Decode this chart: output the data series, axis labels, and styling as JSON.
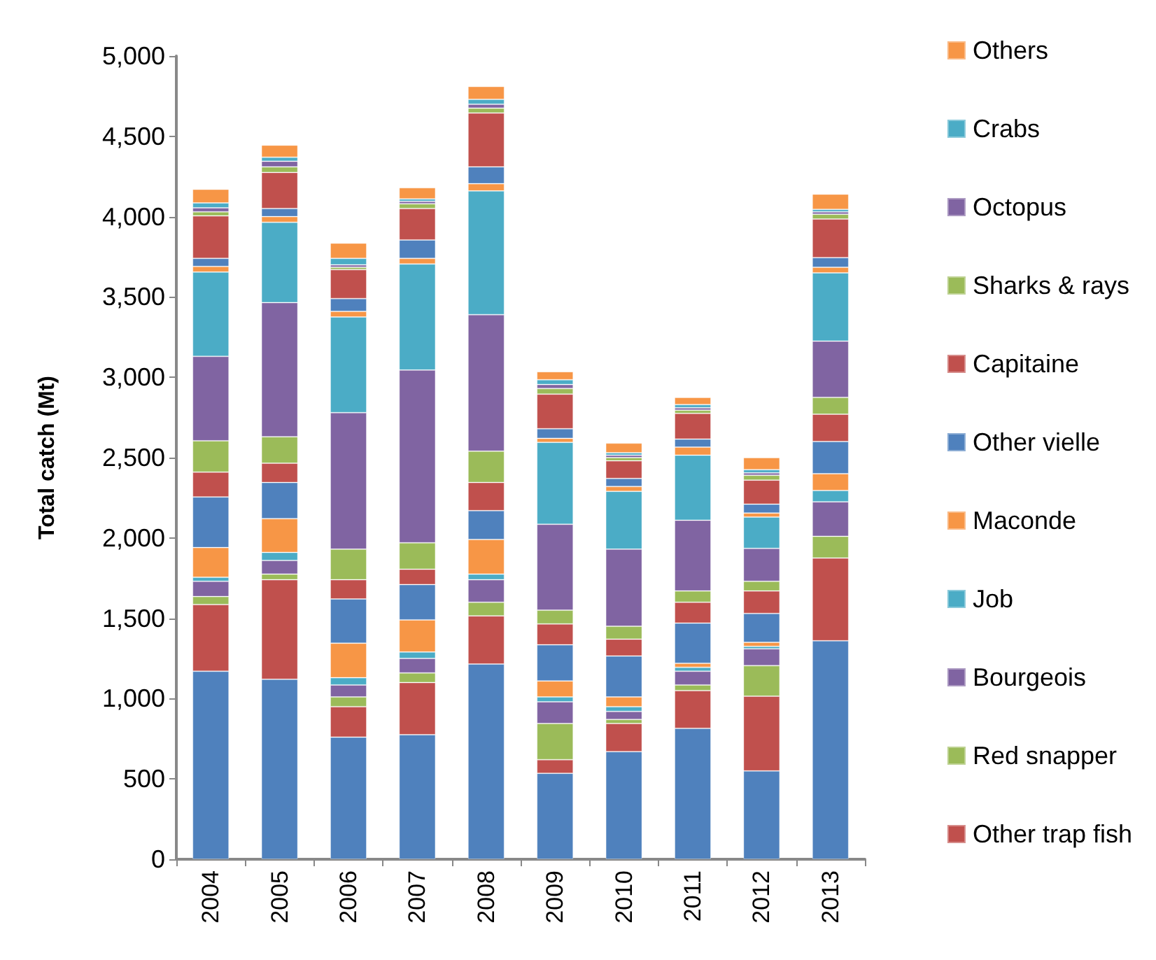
{
  "chart_data": {
    "type": "bar",
    "stacked": true,
    "ylabel": "Total catch (Mt)",
    "categories": [
      "2004",
      "2005",
      "2006",
      "2007",
      "2008",
      "2009",
      "2010",
      "2011",
      "2012",
      "2013"
    ],
    "ylim": [
      0,
      5000
    ],
    "yticks": [
      {
        "value": 0,
        "label": "0"
      },
      {
        "value": 500,
        "label": "500"
      },
      {
        "value": 1000,
        "label": "1,000"
      },
      {
        "value": 1500,
        "label": "1,500"
      },
      {
        "value": 2000,
        "label": "2,000"
      },
      {
        "value": 2500,
        "label": "2,500"
      },
      {
        "value": 3000,
        "label": "3,000"
      },
      {
        "value": 3500,
        "label": "3,500"
      },
      {
        "value": 4000,
        "label": "4,000"
      },
      {
        "value": 4500,
        "label": "4,500"
      },
      {
        "value": 5000,
        "label": "5,000"
      }
    ],
    "grid": false,
    "legend": "right",
    "series": [
      {
        "color": "#4f81bd",
        "values": [
          1170,
          1120,
          760,
          775,
          1215,
          535,
          670,
          815,
          550,
          1360
        ]
      },
      {
        "color": "#c0504d",
        "values": [
          415,
          620,
          190,
          325,
          300,
          85,
          175,
          235,
          465,
          515
        ]
      },
      {
        "color": "#9bbb59",
        "values": [
          50,
          35,
          60,
          60,
          85,
          225,
          25,
          35,
          190,
          135
        ]
      },
      {
        "color": "#8064a2",
        "values": [
          95,
          85,
          75,
          90,
          140,
          135,
          50,
          85,
          105,
          215
        ]
      },
      {
        "color": "#4bacc6",
        "values": [
          25,
          50,
          45,
          40,
          35,
          30,
          30,
          25,
          15,
          70
        ]
      },
      {
        "color": "#f79646",
        "values": [
          185,
          210,
          215,
          200,
          215,
          100,
          60,
          25,
          25,
          105
        ]
      },
      {
        "color": "#4f81bd",
        "values": [
          315,
          225,
          275,
          220,
          180,
          225,
          255,
          250,
          180,
          200
        ]
      },
      {
        "name": "Other trap fish",
        "color": "#c0504d",
        "values": [
          155,
          120,
          120,
          95,
          175,
          130,
          105,
          130,
          140,
          170
        ]
      },
      {
        "name": "Red snapper",
        "color": "#9bbb59",
        "values": [
          195,
          165,
          190,
          165,
          195,
          85,
          80,
          70,
          60,
          105
        ]
      },
      {
        "name": "Bourgeois",
        "color": "#8064a2",
        "values": [
          525,
          835,
          850,
          1075,
          850,
          535,
          480,
          440,
          205,
          350
        ]
      },
      {
        "name": "Job",
        "color": "#4bacc6",
        "values": [
          525,
          500,
          595,
          660,
          770,
          510,
          360,
          405,
          195,
          425
        ]
      },
      {
        "name": "Maconde",
        "color": "#f79646",
        "values": [
          35,
          35,
          35,
          35,
          45,
          25,
          30,
          50,
          25,
          35
        ]
      },
      {
        "name": "Other vielle",
        "color": "#4f81bd",
        "values": [
          50,
          50,
          80,
          115,
          105,
          60,
          50,
          50,
          55,
          60
        ]
      },
      {
        "name": "Capitaine",
        "color": "#c0504d",
        "values": [
          265,
          225,
          180,
          195,
          335,
          215,
          110,
          160,
          150,
          240
        ]
      },
      {
        "name": "Sharks & rays",
        "color": "#9bbb59",
        "values": [
          25,
          35,
          15,
          30,
          30,
          35,
          20,
          20,
          30,
          30
        ]
      },
      {
        "name": "Octopus",
        "color": "#8064a2",
        "values": [
          25,
          35,
          15,
          15,
          25,
          25,
          15,
          15,
          15,
          15
        ]
      },
      {
        "name": "Crabs",
        "color": "#4bacc6",
        "values": [
          30,
          25,
          40,
          15,
          30,
          30,
          15,
          20,
          20,
          15
        ]
      },
      {
        "name": "Others",
        "color": "#f79646",
        "values": [
          85,
          75,
          95,
          70,
          80,
          50,
          60,
          45,
          75,
          95
        ]
      }
    ]
  }
}
